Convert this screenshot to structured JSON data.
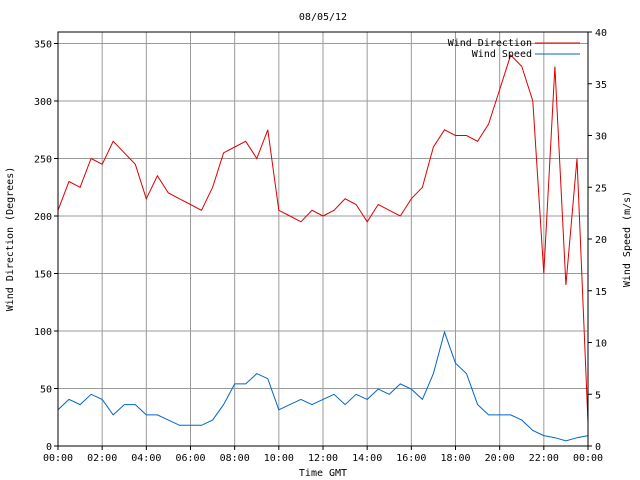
{
  "chart_data": {
    "type": "line",
    "title": "08/05/12",
    "xlabel": "Time GMT",
    "ylabel_left": "Wind Direction (Degrees)",
    "ylabel_right": "Wind Speed (m/s)",
    "x_ticks": [
      "00:00",
      "02:00",
      "04:00",
      "06:00",
      "08:00",
      "10:00",
      "12:00",
      "14:00",
      "16:00",
      "18:00",
      "20:00",
      "22:00",
      "00:00"
    ],
    "y_left_ticks": [
      "0",
      "50",
      "100",
      "150",
      "200",
      "250",
      "300",
      "350"
    ],
    "y_right_ticks": [
      "0",
      "5",
      "10",
      "15",
      "20",
      "25",
      "30",
      "35",
      "40"
    ],
    "xlim_hours": [
      0,
      24
    ],
    "ylim_left": [
      0,
      360
    ],
    "ylim_right": [
      0,
      40
    ],
    "grid": true,
    "legend_position": "top-right",
    "colors": {
      "direction": "#dd0000",
      "speed": "#0066cc"
    },
    "series": [
      {
        "name": "Wind Direction",
        "axis": "left",
        "x_hours": [
          0,
          0.5,
          1,
          1.5,
          2,
          2.5,
          3,
          3.5,
          4,
          4.5,
          5,
          5.5,
          6,
          6.5,
          7,
          7.5,
          8,
          8.5,
          9,
          9.5,
          10,
          10.5,
          11,
          11.5,
          12,
          12.5,
          13,
          13.5,
          14,
          14.5,
          15,
          15.5,
          16,
          16.5,
          17,
          17.5,
          18,
          18.5,
          19,
          19.5,
          20,
          20.5,
          21,
          21.5,
          22,
          22.5,
          23,
          23.5,
          24
        ],
        "values": [
          205,
          230,
          225,
          250,
          245,
          265,
          255,
          245,
          215,
          235,
          220,
          215,
          210,
          205,
          225,
          255,
          260,
          265,
          250,
          275,
          205,
          200,
          195,
          205,
          200,
          205,
          215,
          210,
          195,
          210,
          205,
          200,
          215,
          225,
          260,
          275,
          270,
          270,
          265,
          280,
          310,
          340,
          330,
          300,
          150,
          330,
          140,
          250,
          20
        ]
      },
      {
        "name": "Wind Speed",
        "axis": "right",
        "x_hours": [
          0,
          0.5,
          1,
          1.5,
          2,
          2.5,
          3,
          3.5,
          4,
          4.5,
          5,
          5.5,
          6,
          6.5,
          7,
          7.5,
          8,
          8.5,
          9,
          9.5,
          10,
          10.5,
          11,
          11.5,
          12,
          12.5,
          13,
          13.5,
          14,
          14.5,
          15,
          15.5,
          16,
          16.5,
          17,
          17.5,
          18,
          18.5,
          19,
          19.5,
          20,
          20.5,
          21,
          21.5,
          22,
          22.5,
          23,
          23.5,
          24
        ],
        "values": [
          3.5,
          4.5,
          4,
          5,
          4.5,
          3,
          4,
          4,
          3,
          3,
          2.5,
          2,
          2,
          2,
          2.5,
          4,
          6,
          6,
          7,
          6.5,
          3.5,
          4,
          4.5,
          4,
          4.5,
          5,
          4,
          5,
          4.5,
          5.5,
          5,
          6,
          5.5,
          4.5,
          7,
          11,
          8,
          7,
          4,
          3,
          3,
          3,
          2.5,
          1.5,
          1,
          0.8,
          0.5,
          0.8,
          1
        ]
      }
    ]
  }
}
